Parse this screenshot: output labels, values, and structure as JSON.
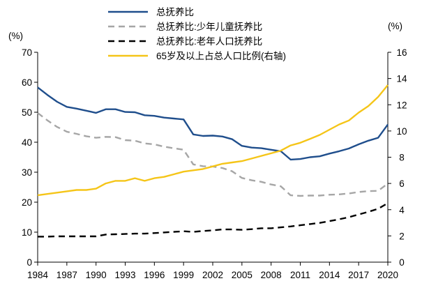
{
  "chart_data": {
    "type": "line",
    "title": "",
    "x": [
      1984,
      1985,
      1986,
      1987,
      1988,
      1989,
      1990,
      1991,
      1992,
      1993,
      1994,
      1995,
      1996,
      1997,
      1998,
      1999,
      2000,
      2001,
      2002,
      2003,
      2004,
      2005,
      2006,
      2007,
      2008,
      2009,
      2010,
      2011,
      2012,
      2013,
      2014,
      2015,
      2016,
      2017,
      2018,
      2019,
      2020
    ],
    "x_tick_labels": [
      "1984",
      "1987",
      "1990",
      "1993",
      "1996",
      "1999",
      "2002",
      "2005",
      "2008",
      "2011",
      "2014",
      "2017",
      "2020"
    ],
    "left_axis": {
      "unit_label": "(%)",
      "ylim": [
        0,
        70
      ],
      "ticks": [
        0,
        10,
        20,
        30,
        40,
        50,
        60,
        70
      ]
    },
    "right_axis": {
      "unit_label": "(%)",
      "ylim": [
        0,
        16
      ],
      "ticks": [
        0,
        2,
        4,
        6,
        8,
        10,
        12,
        14,
        16
      ]
    },
    "series": [
      {
        "name": "总抚养比",
        "axis": "left",
        "color": "#1f4e8c",
        "dash": "solid",
        "values": [
          58.3,
          55.8,
          53.5,
          51.8,
          51.2,
          50.5,
          49.8,
          51.0,
          51.0,
          50.1,
          50.0,
          49.0,
          48.8,
          48.2,
          47.9,
          47.6,
          42.6,
          42.1,
          42.2,
          41.9,
          41.0,
          38.8,
          38.2,
          38.0,
          37.5,
          37.0,
          34.2,
          34.4,
          35.0,
          35.3,
          36.2,
          37.0,
          37.9,
          39.3,
          40.5,
          41.5,
          45.9
        ]
      },
      {
        "name": "总抚养比:少年儿童抚养比",
        "axis": "left",
        "color": "#a6a6a6",
        "dash": "dashed",
        "values": [
          49.8,
          47.3,
          45.1,
          43.5,
          42.8,
          42.0,
          41.5,
          41.8,
          41.7,
          40.7,
          40.5,
          39.6,
          39.3,
          38.5,
          38.0,
          37.5,
          32.6,
          32.0,
          31.9,
          31.4,
          30.3,
          28.1,
          27.3,
          26.8,
          25.9,
          25.3,
          22.3,
          22.1,
          22.2,
          22.2,
          22.5,
          22.6,
          22.9,
          23.4,
          23.7,
          23.8,
          26.2
        ]
      },
      {
        "name": "总抚养比:老年人口抚养比",
        "axis": "left",
        "color": "#000000",
        "dash": "dashed",
        "values": [
          8.5,
          8.5,
          8.6,
          8.6,
          8.6,
          8.6,
          8.6,
          9.2,
          9.3,
          9.4,
          9.5,
          9.5,
          9.7,
          9.9,
          10.1,
          10.3,
          10.1,
          10.4,
          10.6,
          10.9,
          10.9,
          10.8,
          11.0,
          11.3,
          11.3,
          11.6,
          11.9,
          12.3,
          12.7,
          13.1,
          13.7,
          14.3,
          15.0,
          15.9,
          16.8,
          17.8,
          19.7
        ]
      },
      {
        "name": "65岁及以上占总人口比例(右轴)",
        "axis": "right",
        "color": "#f5c518",
        "dash": "solid",
        "values": [
          5.1,
          5.2,
          5.3,
          5.4,
          5.5,
          5.5,
          5.6,
          6.0,
          6.2,
          6.2,
          6.4,
          6.2,
          6.4,
          6.5,
          6.7,
          6.9,
          7.0,
          7.1,
          7.3,
          7.5,
          7.6,
          7.7,
          7.9,
          8.1,
          8.3,
          8.5,
          8.9,
          9.1,
          9.4,
          9.7,
          10.1,
          10.5,
          10.8,
          11.4,
          11.9,
          12.6,
          13.5
        ]
      }
    ],
    "grid": false,
    "legend_position": "top-center"
  }
}
